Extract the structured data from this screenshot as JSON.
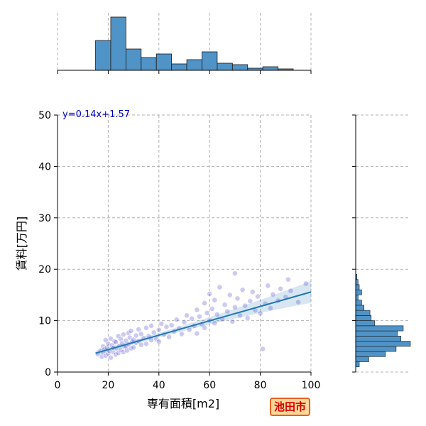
{
  "badge": "池田市",
  "chart_data": {
    "type": "scatter",
    "xlabel": "専有面積[m2]",
    "ylabel": "賃料[万円]",
    "xlim": [
      0,
      100
    ],
    "ylim": [
      0,
      50
    ],
    "x_ticks": [
      0,
      20,
      40,
      60,
      80,
      100
    ],
    "y_ticks": [
      0,
      10,
      20,
      30,
      40,
      50
    ],
    "grid": true,
    "equation": "y=0.14x+1.57",
    "regression": {
      "slope": 0.14,
      "intercept": 1.57,
      "x_range": [
        15,
        100
      ]
    },
    "colors": {
      "points": "#4b3fd1",
      "regression": "#1f77b4",
      "hist": "#5093c7",
      "equation": "#0000c0"
    },
    "points": [
      {
        "x": 16,
        "y": 3.5
      },
      {
        "x": 17,
        "y": 4.2
      },
      {
        "x": 17.5,
        "y": 3.0
      },
      {
        "x": 18,
        "y": 3.8
      },
      {
        "x": 18,
        "y": 5.0
      },
      {
        "x": 18.5,
        "y": 4.4
      },
      {
        "x": 19,
        "y": 3.2
      },
      {
        "x": 19,
        "y": 6.2
      },
      {
        "x": 19.5,
        "y": 4.8
      },
      {
        "x": 20,
        "y": 3.6
      },
      {
        "x": 20,
        "y": 5.5
      },
      {
        "x": 20.5,
        "y": 4.1
      },
      {
        "x": 21,
        "y": 2.8
      },
      {
        "x": 21,
        "y": 6.5
      },
      {
        "x": 21.5,
        "y": 5.2
      },
      {
        "x": 22,
        "y": 3.9
      },
      {
        "x": 22,
        "y": 4.7
      },
      {
        "x": 22.5,
        "y": 6.0
      },
      {
        "x": 23,
        "y": 3.4
      },
      {
        "x": 23,
        "y": 5.8
      },
      {
        "x": 23.5,
        "y": 4.5
      },
      {
        "x": 24,
        "y": 7.0
      },
      {
        "x": 24,
        "y": 3.7
      },
      {
        "x": 24.5,
        "y": 5.1
      },
      {
        "x": 25,
        "y": 4.3
      },
      {
        "x": 25,
        "y": 6.4
      },
      {
        "x": 25.5,
        "y": 5.6
      },
      {
        "x": 26,
        "y": 3.9
      },
      {
        "x": 26,
        "y": 7.3
      },
      {
        "x": 26.5,
        "y": 4.9
      },
      {
        "x": 27,
        "y": 6.1
      },
      {
        "x": 27,
        "y": 5.0
      },
      {
        "x": 27.5,
        "y": 4.2
      },
      {
        "x": 28,
        "y": 7.6
      },
      {
        "x": 28,
        "y": 5.4
      },
      {
        "x": 28.5,
        "y": 6.7
      },
      {
        "x": 29,
        "y": 4.6
      },
      {
        "x": 29,
        "y": 8.0
      },
      {
        "x": 29.5,
        "y": 5.9
      },
      {
        "x": 30,
        "y": 6.3
      },
      {
        "x": 30,
        "y": 4.8
      },
      {
        "x": 31,
        "y": 7.1
      },
      {
        "x": 31,
        "y": 5.7
      },
      {
        "x": 32,
        "y": 8.3
      },
      {
        "x": 32,
        "y": 6.0
      },
      {
        "x": 33,
        "y": 5.3
      },
      {
        "x": 33,
        "y": 7.4
      },
      {
        "x": 34,
        "y": 6.6
      },
      {
        "x": 35,
        "y": 8.6
      },
      {
        "x": 35,
        "y": 5.5
      },
      {
        "x": 36,
        "y": 7.0
      },
      {
        "x": 37,
        "y": 6.2
      },
      {
        "x": 37,
        "y": 9.0
      },
      {
        "x": 38,
        "y": 7.7
      },
      {
        "x": 39,
        "y": 6.4
      },
      {
        "x": 40,
        "y": 8.2
      },
      {
        "x": 40,
        "y": 5.9
      },
      {
        "x": 41,
        "y": 9.4
      },
      {
        "x": 42,
        "y": 7.3
      },
      {
        "x": 43,
        "y": 8.8
      },
      {
        "x": 44,
        "y": 6.8
      },
      {
        "x": 45,
        "y": 9.1
      },
      {
        "x": 46,
        "y": 7.9
      },
      {
        "x": 47,
        "y": 10.2
      },
      {
        "x": 48,
        "y": 8.5
      },
      {
        "x": 49,
        "y": 7.4
      },
      {
        "x": 50,
        "y": 9.7
      },
      {
        "x": 51,
        "y": 11.0
      },
      {
        "x": 52,
        "y": 8.2
      },
      {
        "x": 53,
        "y": 10.4
      },
      {
        "x": 54,
        "y": 9.0
      },
      {
        "x": 55,
        "y": 12.1
      },
      {
        "x": 55,
        "y": 7.5
      },
      {
        "x": 56,
        "y": 10.8
      },
      {
        "x": 57,
        "y": 9.3
      },
      {
        "x": 58,
        "y": 13.4
      },
      {
        "x": 58,
        "y": 8.6
      },
      {
        "x": 59,
        "y": 11.5
      },
      {
        "x": 60,
        "y": 10.0
      },
      {
        "x": 60,
        "y": 15.2
      },
      {
        "x": 61,
        "y": 12.3
      },
      {
        "x": 62,
        "y": 9.5
      },
      {
        "x": 62,
        "y": 14.0
      },
      {
        "x": 63,
        "y": 11.2
      },
      {
        "x": 64,
        "y": 16.5
      },
      {
        "x": 65,
        "y": 10.3
      },
      {
        "x": 66,
        "y": 13.1
      },
      {
        "x": 67,
        "y": 11.8
      },
      {
        "x": 68,
        "y": 15.0
      },
      {
        "x": 69,
        "y": 9.8
      },
      {
        "x": 70,
        "y": 12.6
      },
      {
        "x": 70,
        "y": 19.2
      },
      {
        "x": 71,
        "y": 14.3
      },
      {
        "x": 72,
        "y": 11.0
      },
      {
        "x": 73,
        "y": 16.0
      },
      {
        "x": 74,
        "y": 12.9
      },
      {
        "x": 75,
        "y": 10.5
      },
      {
        "x": 76,
        "y": 13.8
      },
      {
        "x": 77,
        "y": 15.6
      },
      {
        "x": 78,
        "y": 12.0
      },
      {
        "x": 79,
        "y": 14.7
      },
      {
        "x": 80,
        "y": 11.4
      },
      {
        "x": 81,
        "y": 4.5
      },
      {
        "x": 82,
        "y": 13.3
      },
      {
        "x": 83,
        "y": 16.8
      },
      {
        "x": 84,
        "y": 12.4
      },
      {
        "x": 85,
        "y": 15.1
      },
      {
        "x": 87,
        "y": 13.9
      },
      {
        "x": 88,
        "y": 16.2
      },
      {
        "x": 90,
        "y": 14.6
      },
      {
        "x": 91,
        "y": 18.0
      },
      {
        "x": 92,
        "y": 15.8
      },
      {
        "x": 95,
        "y": 13.6
      },
      {
        "x": 98,
        "y": 17.2
      }
    ],
    "x_hist": {
      "bin_edges": [
        15,
        21,
        27,
        33,
        39,
        45,
        51,
        57,
        63,
        69,
        75,
        81,
        87,
        93
      ],
      "counts": [
        42,
        75,
        30,
        18,
        23,
        9,
        15,
        26,
        10,
        8,
        3,
        5,
        2
      ]
    },
    "y_hist": {
      "bin_edges": [
        1,
        2,
        3,
        4,
        5,
        6,
        7,
        8,
        9,
        10,
        11,
        12,
        13,
        14,
        15,
        16,
        17,
        18,
        19
      ],
      "counts": [
        3,
        11,
        25,
        34,
        46,
        38,
        35,
        40,
        16,
        13,
        12,
        7,
        5,
        2,
        5,
        3,
        2,
        1
      ]
    }
  }
}
